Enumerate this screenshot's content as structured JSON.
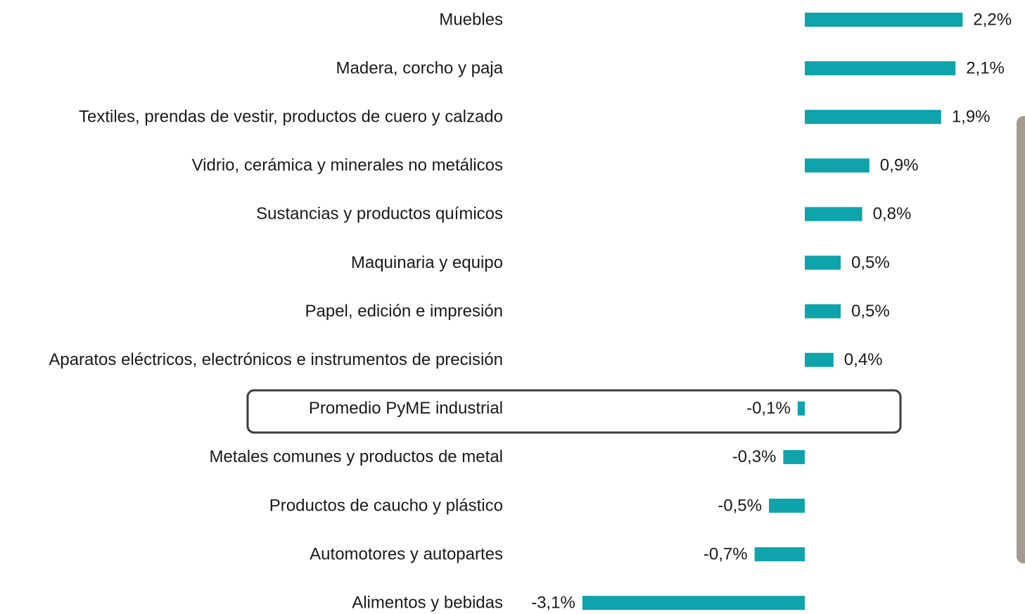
{
  "chart_data": {
    "type": "hbar",
    "categories": [
      "Muebles",
      "Madera, corcho y paja",
      "Textiles, prendas de vestir, productos de cuero y calzado",
      "Vidrio, cerámica y minerales no metálicos",
      "Sustancias y productos químicos",
      "Maquinaria y equipo",
      "Papel, edición e impresión",
      "Aparatos eléctricos, electrónicos e instrumentos de precisión",
      "Promedio PyME industrial",
      "Metales comunes y productos de metal",
      "Productos de caucho y plástico",
      "Automotores y autopartes",
      "Alimentos y bebidas"
    ],
    "values": [
      2.2,
      2.1,
      1.9,
      0.9,
      0.8,
      0.5,
      0.5,
      0.4,
      -0.1,
      -0.3,
      -0.5,
      -0.7,
      -3.1
    ],
    "value_labels": [
      "2,2%",
      "2,1%",
      "1,9%",
      "0,9%",
      "0,8%",
      "0,5%",
      "0,5%",
      "0,4%",
      "-0,1%",
      "-0,3%",
      "-0,5%",
      "-0,7%",
      "-3,1%"
    ],
    "color": "#0fa3ab"
  }
}
